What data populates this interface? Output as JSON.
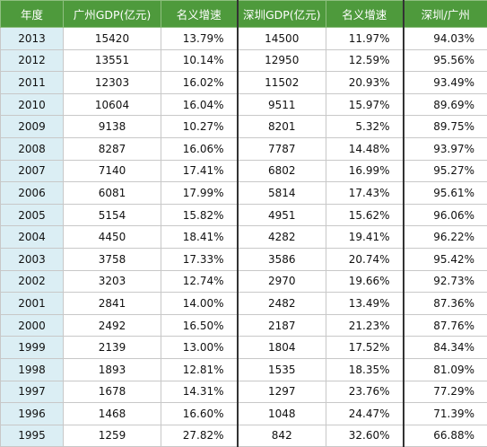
{
  "table": {
    "header": [
      "年度",
      "广州GDP(亿元)",
      "名义增速",
      "深圳GDP(亿元)",
      "名义增速",
      "深圳/广州"
    ],
    "rows": [
      [
        "2013",
        "15420",
        "13.79%",
        "14500",
        "11.97%",
        "94.03%"
      ],
      [
        "2012",
        "13551",
        "10.14%",
        "12950",
        "12.59%",
        "95.56%"
      ],
      [
        "2011",
        "12303",
        "16.02%",
        "11502",
        "20.93%",
        "93.49%"
      ],
      [
        "2010",
        "10604",
        "16.04%",
        "9511",
        "15.97%",
        "89.69%"
      ],
      [
        "2009",
        "9138",
        "10.27%",
        "8201",
        "5.32%",
        "89.75%"
      ],
      [
        "2008",
        "8287",
        "16.06%",
        "7787",
        "14.48%",
        "93.97%"
      ],
      [
        "2007",
        "7140",
        "17.41%",
        "6802",
        "16.99%",
        "95.27%"
      ],
      [
        "2006",
        "6081",
        "17.99%",
        "5814",
        "17.43%",
        "95.61%"
      ],
      [
        "2005",
        "5154",
        "15.82%",
        "4951",
        "15.62%",
        "96.06%"
      ],
      [
        "2004",
        "4450",
        "18.41%",
        "4282",
        "19.41%",
        "96.22%"
      ],
      [
        "2003",
        "3758",
        "17.33%",
        "3586",
        "20.74%",
        "95.42%"
      ],
      [
        "2002",
        "3203",
        "12.74%",
        "2970",
        "19.66%",
        "92.73%"
      ],
      [
        "2001",
        "2841",
        "14.00%",
        "2482",
        "13.49%",
        "87.36%"
      ],
      [
        "2000",
        "2492",
        "16.50%",
        "2187",
        "21.23%",
        "87.76%"
      ],
      [
        "1999",
        "2139",
        "13.00%",
        "1804",
        "17.52%",
        "84.34%"
      ],
      [
        "1998",
        "1893",
        "12.81%",
        "1535",
        "18.35%",
        "81.09%"
      ],
      [
        "1997",
        "1678",
        "14.31%",
        "1297",
        "23.76%",
        "77.29%"
      ],
      [
        "1996",
        "1468",
        "16.60%",
        "1048",
        "24.47%",
        "71.39%"
      ],
      [
        "1995",
        "1259",
        "27.82%",
        "842",
        "32.60%",
        "66.88%"
      ]
    ]
  }
}
